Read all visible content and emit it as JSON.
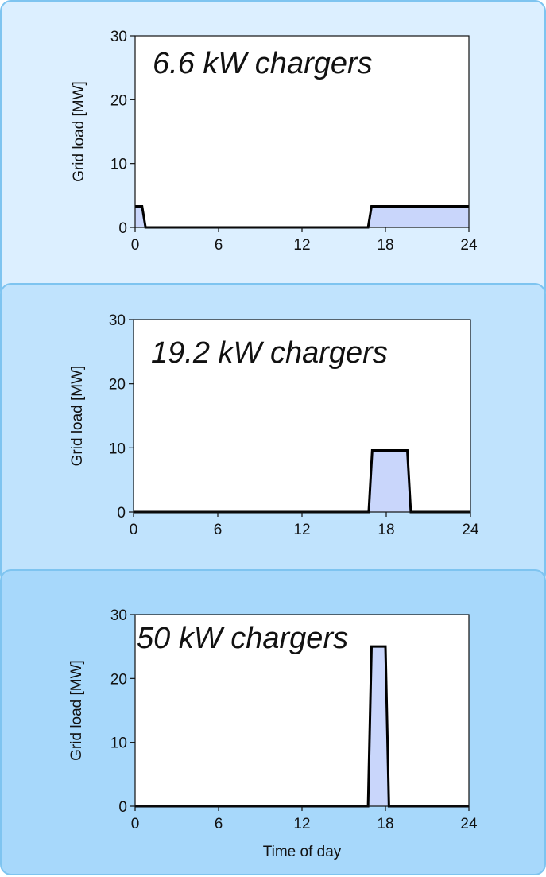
{
  "chart_data": [
    {
      "type": "area",
      "title": "6.6 kW chargers",
      "xlabel": "",
      "ylabel": "Grid load [MW]",
      "xlim": [
        0,
        24
      ],
      "ylim": [
        0,
        30
      ],
      "xticks": [
        "0",
        "6",
        "12",
        "18",
        "24"
      ],
      "yticks": [
        "0",
        "10",
        "20",
        "30"
      ],
      "x": [
        0,
        0.5,
        0.75,
        16.75,
        17.0,
        24
      ],
      "y": [
        3.3,
        3.3,
        0,
        0,
        3.3,
        3.3
      ],
      "fill_color": "#c9d6fb",
      "line_color": "#000000"
    },
    {
      "type": "area",
      "title": "19.2 kW chargers",
      "xlabel": "",
      "ylabel": "Grid load [MW]",
      "xlim": [
        0,
        24
      ],
      "ylim": [
        0,
        30
      ],
      "xticks": [
        "0",
        "6",
        "12",
        "18",
        "24"
      ],
      "yticks": [
        "0",
        "10",
        "20",
        "30"
      ],
      "x": [
        0,
        16.75,
        17.0,
        19.5,
        19.75,
        24
      ],
      "y": [
        0,
        0,
        9.6,
        9.6,
        0,
        0
      ],
      "fill_color": "#c9d6fb",
      "line_color": "#000000"
    },
    {
      "type": "area",
      "title": "50 kW chargers",
      "xlabel": "Time of day",
      "ylabel": "Grid load [MW]",
      "xlim": [
        0,
        24
      ],
      "ylim": [
        0,
        30
      ],
      "xticks": [
        "0",
        "6",
        "12",
        "18",
        "24"
      ],
      "yticks": [
        "0",
        "10",
        "20",
        "30"
      ],
      "x": [
        0,
        16.75,
        17.0,
        18.0,
        18.25,
        24
      ],
      "y": [
        0,
        0,
        25,
        25,
        0,
        0
      ],
      "fill_color": "#c9d6fb",
      "line_color": "#000000"
    }
  ]
}
